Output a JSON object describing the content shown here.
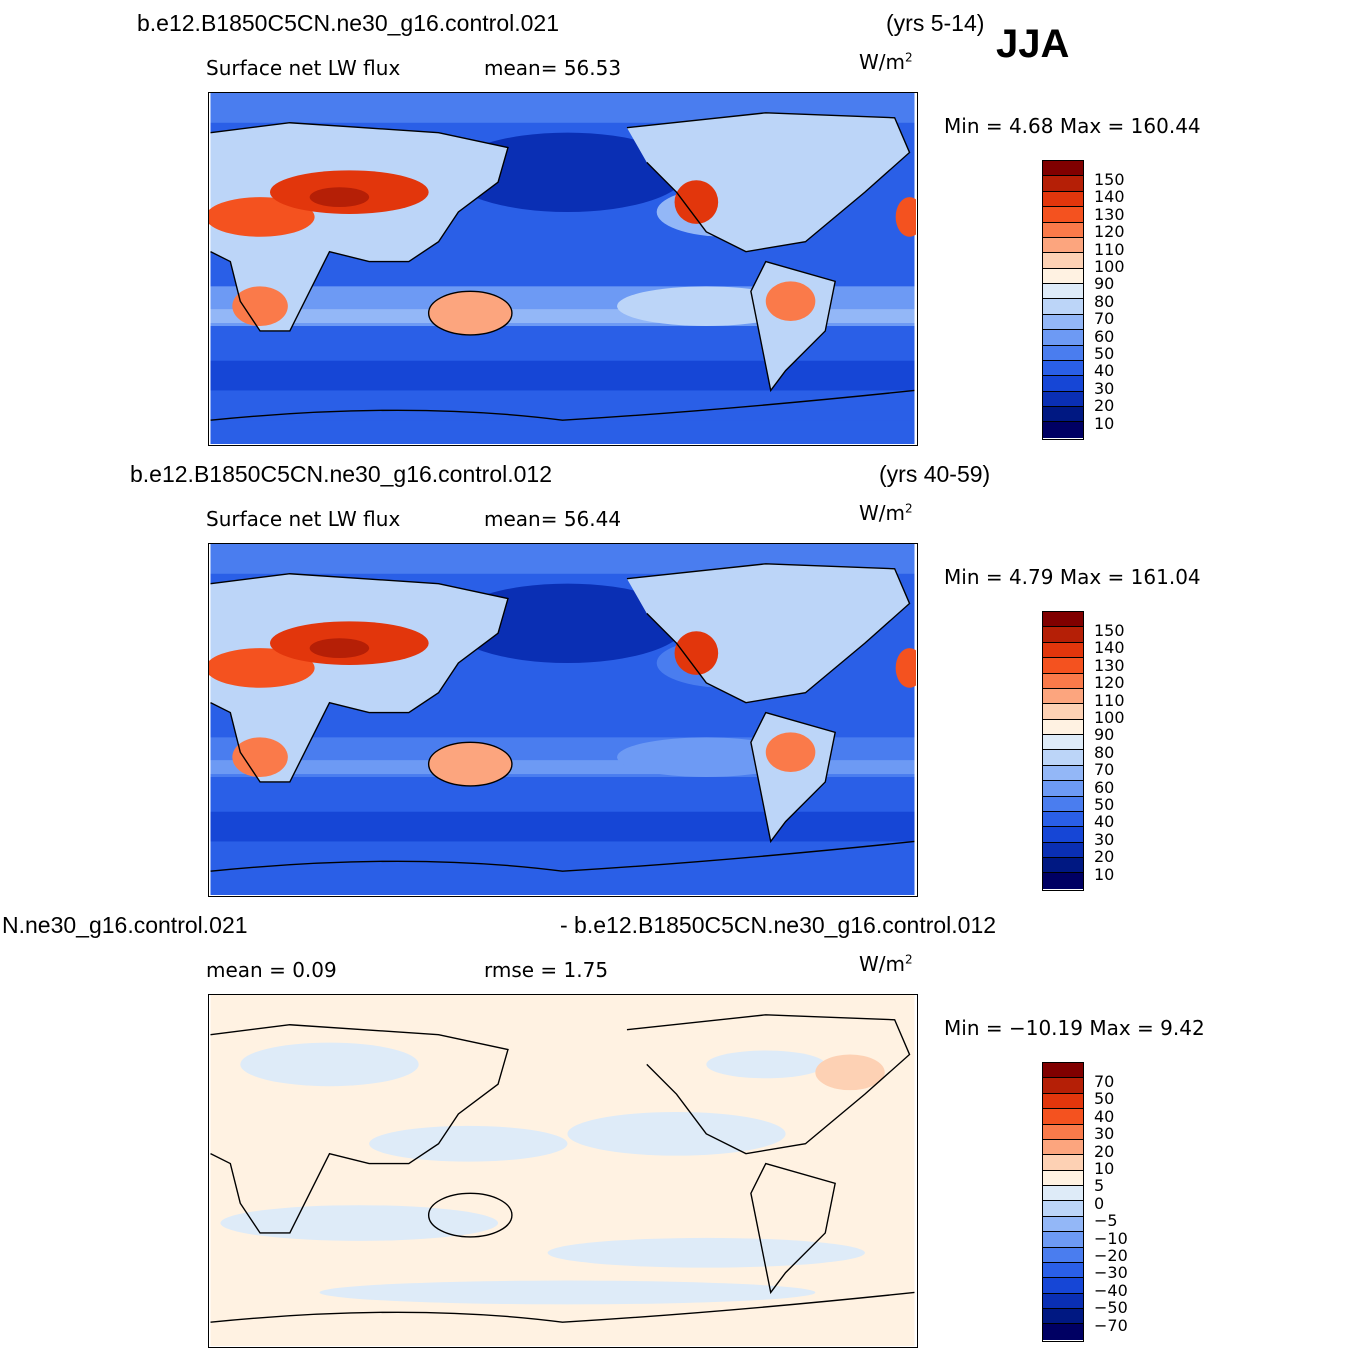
{
  "season": "JJA",
  "units_text": "W/m",
  "units_sup": "2",
  "panels": [
    {
      "title_left": "b.e12.B1850C5CN.ne30_g16.control.021",
      "title_right": "(yrs 5-14)",
      "sub_left": "Surface  net  LW  flux",
      "sub_mid": "mean=   56.53",
      "minmax": "Min  =       4.68  Max  =  160.44",
      "colors": [
        "#800000",
        "#b51f06",
        "#e2360c",
        "#f4521f",
        "#fa7a4a",
        "#fca57e",
        "#fdd1b4",
        "#fff2e2",
        "#deebf8",
        "#bcd5f8",
        "#93b7f7",
        "#6d9af4",
        "#4a7def",
        "#2a5fe7",
        "#1646d6",
        "#0a2fb4",
        "#001882",
        "#000063"
      ],
      "labels": [
        "150",
        "140",
        "130",
        "120",
        "110",
        "100",
        "90",
        "80",
        "70",
        "60",
        "50",
        "40",
        "30",
        "20",
        "10"
      ]
    },
    {
      "title_left": "b.e12.B1850C5CN.ne30_g16.control.012",
      "title_right": "(yrs 40-59)",
      "sub_left": "Surface  net  LW  flux",
      "sub_mid": "mean=   56.44",
      "minmax": "Min  =       4.79  Max  =  161.04",
      "colors": [
        "#800000",
        "#b51f06",
        "#e2360c",
        "#f4521f",
        "#fa7a4a",
        "#fca57e",
        "#fdd1b4",
        "#fff2e2",
        "#deebf8",
        "#bcd5f8",
        "#93b7f7",
        "#6d9af4",
        "#4a7def",
        "#2a5fe7",
        "#1646d6",
        "#0a2fb4",
        "#001882",
        "#000063"
      ],
      "labels": [
        "150",
        "140",
        "130",
        "120",
        "110",
        "100",
        "90",
        "80",
        "70",
        "60",
        "50",
        "40",
        "30",
        "20",
        "10"
      ]
    },
    {
      "title_left": "N.ne30_g16.control.021",
      "title_right": "- b.e12.B1850C5CN.ne30_g16.control.012",
      "sub_left": "mean  =       0.09",
      "sub_mid": "rmse  =      1.75",
      "minmax": "Min  = −10.19  Max  =        9.42",
      "colors": [
        "#800000",
        "#b51f06",
        "#e2360c",
        "#f4521f",
        "#fa7a4a",
        "#fca57e",
        "#fdd1b4",
        "#fff2e2",
        "#deebf8",
        "#bcd5f8",
        "#93b7f7",
        "#6d9af4",
        "#4a7def",
        "#2a5fe7",
        "#1646d6",
        "#0a2fb4",
        "#001882",
        "#000063"
      ],
      "labels": [
        "70",
        "50",
        "40",
        "30",
        "20",
        "10",
        "5",
        "0",
        "−5",
        "−10",
        "−20",
        "−30",
        "−40",
        "−50",
        "−70"
      ]
    }
  ]
}
